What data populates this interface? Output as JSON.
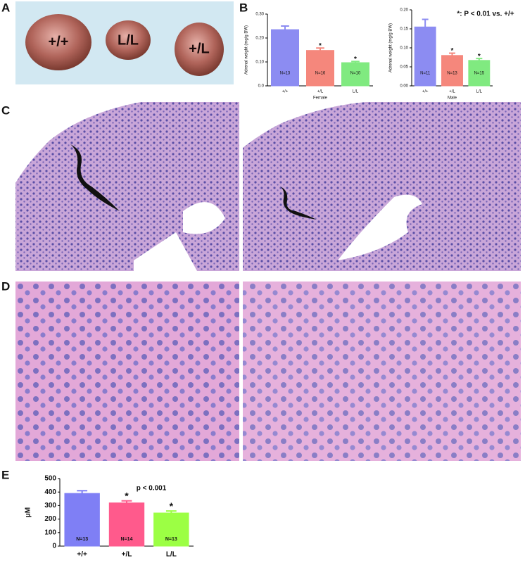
{
  "panel_labels": [
    "A",
    "B",
    "C",
    "D",
    "E"
  ],
  "photo_labels": [
    "+/+",
    "L/L",
    "+/L"
  ],
  "chart_data": [
    {
      "type": "bar",
      "y_label": "Adrenal weight (mg/g BW)",
      "x_label": "Female",
      "categories": [
        "+/+",
        "+/L",
        "L/L"
      ],
      "values": [
        0.235,
        0.148,
        0.097
      ],
      "errors": [
        0.015,
        0.01,
        0.005
      ],
      "colors": [
        "#8c8cf2",
        "#f5877c",
        "#80ea80"
      ],
      "n_labels": [
        "N=13",
        "N=16",
        "N=10"
      ],
      "markers": [
        null,
        "*",
        "*"
      ],
      "ylim": [
        0,
        0.3
      ],
      "yticks": [
        {
          "value": 0,
          "label": "0.0"
        },
        {
          "value": 0.1,
          "label": "0.10"
        },
        {
          "value": 0.2,
          "label": "0.20"
        },
        {
          "value": 0.3,
          "label": "0.30"
        }
      ]
    },
    {
      "type": "bar",
      "y_label": "Adrenal weight (mg/g BW)",
      "x_label": "Male",
      "annotation": "*: P < 0.01 vs. +/+",
      "categories": [
        "+/+",
        "+/L",
        "L/L"
      ],
      "values": [
        0.155,
        0.08,
        0.067
      ],
      "errors": [
        0.02,
        0.006,
        0.005
      ],
      "colors": [
        "#8c8cf2",
        "#f5877c",
        "#80ea80"
      ],
      "n_labels": [
        "N=11",
        "N=13",
        "N=15"
      ],
      "markers": [
        null,
        "*",
        "*"
      ],
      "ylim": [
        0,
        0.2
      ],
      "yticks": [
        {
          "value": 0,
          "label": "0.00"
        },
        {
          "value": 0.05,
          "label": "0.05"
        },
        {
          "value": 0.1,
          "label": "0.10"
        },
        {
          "value": 0.15,
          "label": "0.15"
        },
        {
          "value": 0.2,
          "label": "0.20"
        }
      ]
    },
    {
      "type": "bar",
      "y_label": "μM",
      "annotation": "p < 0.001",
      "categories": [
        "+/+",
        "+/L",
        "L/L"
      ],
      "values": [
        390,
        320,
        245
      ],
      "errors": [
        20,
        15,
        15
      ],
      "colors": [
        "#7f7ff5",
        "#ff5a8c",
        "#9cff44"
      ],
      "n_labels": [
        "N=13",
        "N=14",
        "N=13"
      ],
      "markers": [
        null,
        "*",
        "*"
      ],
      "ylim": [
        0,
        500
      ],
      "yticks": [
        0,
        100,
        200,
        300,
        400,
        500
      ]
    }
  ]
}
